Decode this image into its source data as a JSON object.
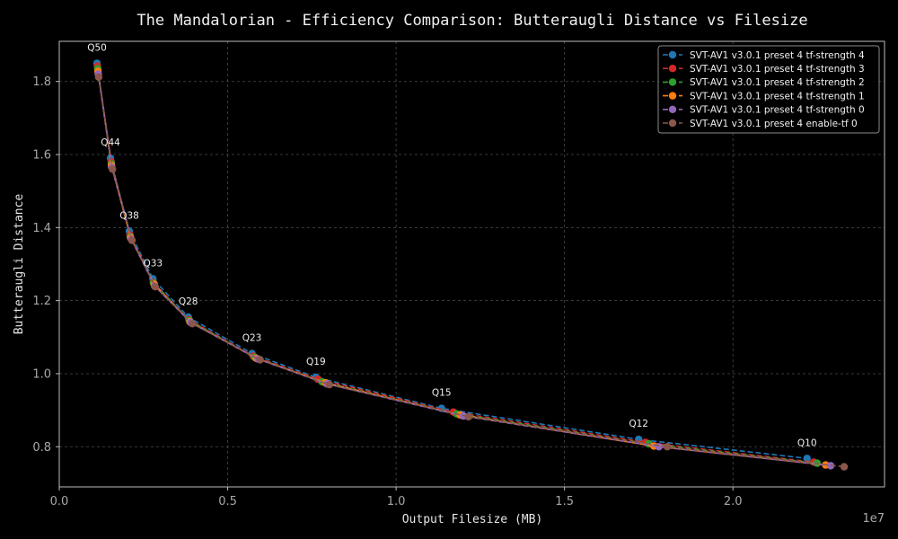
{
  "chart_data": {
    "type": "line",
    "title": "The Mandalorian - Efficiency Comparison: Butteraugli Distance vs Filesize",
    "xlabel": "Output Filesize (MB)",
    "ylabel": "Butteraugli Distance",
    "x_offset_label": "1e7",
    "xlim": [
      0,
      24500000
    ],
    "ylim": [
      0.69,
      1.91
    ],
    "xticks": [
      0,
      5000000,
      10000000,
      15000000,
      20000000
    ],
    "xtick_labels": [
      "0.0",
      "0.5",
      "1.0",
      "1.5",
      "2.0"
    ],
    "yticks": [
      0.8,
      1.0,
      1.2,
      1.4,
      1.6,
      1.8
    ],
    "ytick_labels": [
      "0.8",
      "1.0",
      "1.2",
      "1.4",
      "1.6",
      "1.8"
    ],
    "grid": true,
    "legend_position": "top-right",
    "annotations": [
      {
        "text": "Q50",
        "x": 1120000,
        "y": 1.85
      },
      {
        "text": "Q44",
        "x": 1520000,
        "y": 1.59
      },
      {
        "text": "Q38",
        "x": 2080000,
        "y": 1.39
      },
      {
        "text": "Q33",
        "x": 2780000,
        "y": 1.26
      },
      {
        "text": "Q28",
        "x": 3830000,
        "y": 1.155
      },
      {
        "text": "Q23",
        "x": 5720000,
        "y": 1.055
      },
      {
        "text": "Q19",
        "x": 7620000,
        "y": 0.99
      },
      {
        "text": "Q15",
        "x": 11350000,
        "y": 0.905
      },
      {
        "text": "Q12",
        "x": 17200000,
        "y": 0.82
      },
      {
        "text": "Q10",
        "x": 22200000,
        "y": 0.768
      }
    ],
    "series": [
      {
        "name": "SVT-AV1 v3.0.1 preset 4 tf-strength 4",
        "color": "#1f77b4",
        "dash": "6,3",
        "x": [
          1120000,
          1520000,
          2080000,
          2780000,
          3830000,
          5720000,
          7620000,
          11350000,
          17200000,
          22200000
        ],
        "y": [
          1.85,
          1.59,
          1.39,
          1.26,
          1.155,
          1.055,
          0.99,
          0.905,
          0.82,
          0.768
        ]
      },
      {
        "name": "SVT-AV1 v3.0.1 preset 4 tf-strength 3",
        "color": "#d62728",
        "dash": "6,3",
        "x": [
          1130000,
          1540000,
          2100000,
          2790000,
          3850000,
          5760000,
          7680000,
          11700000,
          17400000,
          22400000
        ],
        "y": [
          1.842,
          1.58,
          1.38,
          1.25,
          1.148,
          1.048,
          0.985,
          0.895,
          0.812,
          0.758
        ]
      },
      {
        "name": "SVT-AV1 v3.0.1 preset 4 tf-strength 2",
        "color": "#2ca02c",
        "dash": "6,3",
        "x": [
          1140000,
          1550000,
          2110000,
          2800000,
          3870000,
          5800000,
          7800000,
          11800000,
          17500000,
          22500000
        ],
        "y": [
          1.835,
          1.575,
          1.375,
          1.248,
          1.145,
          1.045,
          0.978,
          0.89,
          0.808,
          0.755
        ]
      },
      {
        "name": "SVT-AV1 v3.0.1 preset 4 tf-strength 1",
        "color": "#ff7f0e",
        "dash": "6,3",
        "x": [
          1150000,
          1550000,
          2120000,
          2820000,
          3880000,
          5850000,
          7900000,
          11900000,
          17650000,
          22750000
        ],
        "y": [
          1.828,
          1.57,
          1.372,
          1.245,
          1.142,
          1.042,
          0.975,
          0.887,
          0.802,
          0.75
        ]
      },
      {
        "name": "SVT-AV1 v3.0.1 preset 4 tf-strength 0",
        "color": "#9467bd",
        "dash": "6,3",
        "x": [
          1160000,
          1560000,
          2140000,
          2830000,
          3900000,
          5900000,
          7950000,
          12000000,
          17800000,
          22900000
        ],
        "y": [
          1.82,
          1.565,
          1.368,
          1.24,
          1.14,
          1.04,
          0.972,
          0.884,
          0.8,
          0.748
        ]
      },
      {
        "name": "SVT-AV1 v3.0.1 preset 4 enable-tf 0",
        "color": "#8c564b",
        "dash": "6,3",
        "x": [
          1170000,
          1580000,
          2160000,
          2850000,
          3950000,
          5960000,
          8020000,
          12150000,
          18050000,
          23300000
        ],
        "y": [
          1.812,
          1.56,
          1.365,
          1.238,
          1.137,
          1.038,
          0.97,
          0.882,
          0.8,
          0.745
        ]
      }
    ]
  }
}
